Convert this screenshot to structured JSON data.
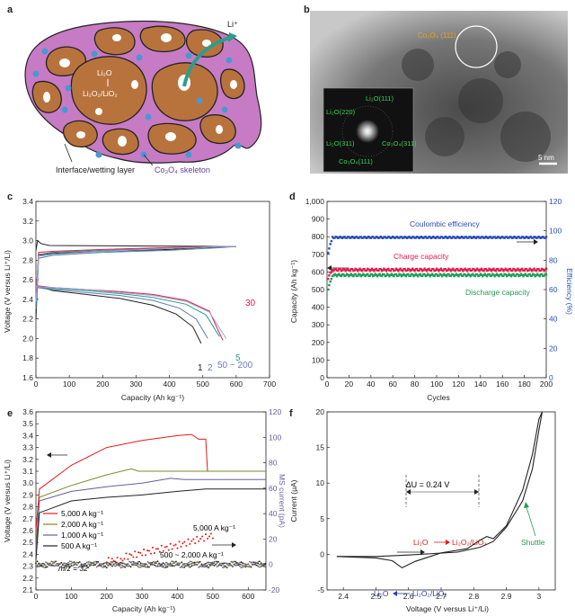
{
  "panel_labels": {
    "a": "a",
    "b": "b",
    "c": "c",
    "d": "d",
    "e": "e",
    "f": "f"
  },
  "panel_a": {
    "li_plus": "Li⁺",
    "li2o": "Li₂O",
    "li2o2": "Li₂O₂/LiO₂",
    "interface": "Interface/wetting layer",
    "skeleton": "Co₃O₄ skeleton",
    "colors": {
      "skeleton": "#c77bc4",
      "grain": "#b8733d",
      "pore": "#ffffff",
      "ball": "#4a97d4"
    }
  },
  "panel_b": {
    "co3o4_111": "Co₃O₄ (111)",
    "saed": [
      "Li₂O(111)",
      "Li₂O(220)",
      "Li₂O(311)",
      "Co₃O₄(311)",
      "Co₃O₄(111)"
    ],
    "scale": "5 nm"
  },
  "chart_data": [
    {
      "panel": "c",
      "type": "line",
      "xlabel": "Capacity (Ah kg⁻¹)",
      "ylabel": "Voltage (V versus Li⁺/Li)",
      "xlim": [
        0,
        700
      ],
      "ylim": [
        1.6,
        3.4
      ],
      "xticks": [
        0,
        100,
        200,
        300,
        400,
        500,
        600,
        700
      ],
      "yticks": [
        1.6,
        1.8,
        2.0,
        2.2,
        2.4,
        2.6,
        2.8,
        3.0,
        3.2,
        3.4
      ],
      "annotations": {
        "c30": "30",
        "c1": "1",
        "c2": "2",
        "c5": "5",
        "c50": "50 ~ 200"
      },
      "series": [
        {
          "color": "#222222",
          "discharge": [
            [
              0,
              2.52
            ],
            [
              10,
              2.53
            ],
            [
              50,
              2.49
            ],
            [
              150,
              2.45
            ],
            [
              250,
              2.41
            ],
            [
              350,
              2.34
            ],
            [
              420,
              2.25
            ],
            [
              470,
              2.12
            ],
            [
              495,
              1.95
            ]
          ],
          "charge": [
            [
              0,
              2.2
            ],
            [
              8,
              2.85
            ],
            [
              50,
              2.87
            ],
            [
              200,
              2.89
            ],
            [
              400,
              2.91
            ],
            [
              500,
              2.93
            ],
            [
              600,
              2.94
            ]
          ],
          "spike": true
        },
        {
          "color": "#5a7fa8",
          "discharge": [
            [
              0,
              2.52
            ],
            [
              50,
              2.5
            ],
            [
              150,
              2.47
            ],
            [
              250,
              2.44
            ],
            [
              350,
              2.39
            ],
            [
              430,
              2.31
            ],
            [
              480,
              2.2
            ],
            [
              515,
              2.0
            ]
          ],
          "charge": [
            [
              0,
              2.3
            ],
            [
              8,
              2.82
            ],
            [
              50,
              2.85
            ],
            [
              200,
              2.88
            ],
            [
              400,
              2.9
            ],
            [
              560,
              2.93
            ],
            [
              600,
              2.94
            ]
          ]
        },
        {
          "color": "#2a9d8f",
          "discharge": [
            [
              0,
              2.53
            ],
            [
              50,
              2.51
            ],
            [
              150,
              2.49
            ],
            [
              250,
              2.46
            ],
            [
              350,
              2.42
            ],
            [
              450,
              2.35
            ],
            [
              510,
              2.24
            ],
            [
              550,
              2.02
            ]
          ],
          "charge": [
            [
              0,
              2.35
            ],
            [
              8,
              2.86
            ],
            [
              50,
              2.88
            ],
            [
              200,
              2.9
            ],
            [
              400,
              2.92
            ],
            [
              540,
              2.94
            ],
            [
              600,
              2.94
            ]
          ]
        },
        {
          "color": "#e31a4a",
          "discharge": [
            [
              0,
              2.54
            ],
            [
              50,
              2.52
            ],
            [
              150,
              2.5
            ],
            [
              250,
              2.48
            ],
            [
              350,
              2.45
            ],
            [
              450,
              2.39
            ],
            [
              520,
              2.28
            ],
            [
              560,
              1.98
            ]
          ],
          "charge": [
            [
              0,
              2.4
            ],
            [
              8,
              2.88
            ],
            [
              50,
              2.89
            ],
            [
              200,
              2.91
            ],
            [
              400,
              2.93
            ],
            [
              550,
              2.94
            ],
            [
              600,
              2.94
            ]
          ]
        },
        {
          "color": "#9aa8d8",
          "discharge": [
            [
              0,
              2.53
            ],
            [
              50,
              2.52
            ],
            [
              150,
              2.5
            ],
            [
              250,
              2.47
            ],
            [
              350,
              2.44
            ],
            [
              450,
              2.38
            ],
            [
              520,
              2.27
            ],
            [
              570,
              2.0
            ]
          ],
          "charge": [
            [
              0,
              2.38
            ],
            [
              8,
              2.84
            ],
            [
              50,
              2.86
            ],
            [
              200,
              2.89
            ],
            [
              400,
              2.92
            ],
            [
              550,
              2.94
            ],
            [
              600,
              2.94
            ]
          ]
        }
      ]
    },
    {
      "panel": "d",
      "type": "scatter",
      "xlabel": "Cycles",
      "ylabel": "Capacity (Ah kg⁻¹)",
      "y2label": "Efficiency (%)",
      "xlim": [
        0,
        200
      ],
      "ylim": [
        0,
        1000
      ],
      "y2lim": [
        0,
        120
      ],
      "xticks": [
        0,
        20,
        40,
        60,
        80,
        100,
        120,
        140,
        160,
        180,
        200
      ],
      "yticks": [
        0,
        100,
        200,
        300,
        400,
        500,
        600,
        700,
        800,
        900,
        1000
      ],
      "y2ticks": [
        0,
        20,
        40,
        60,
        80,
        100,
        120
      ],
      "series": [
        {
          "name": "Coulombic efficiency",
          "color": "#2a4fb8",
          "axis": "y2",
          "start": [
            85,
            88,
            91,
            93
          ],
          "value": 95.5
        },
        {
          "name": "Charge capacity",
          "color": "#e31a4a",
          "axis": "y",
          "start": [
            560,
            580,
            595,
            600
          ],
          "value": 612
        },
        {
          "name": "Discharge capacity",
          "color": "#1f9d55",
          "axis": "y",
          "start": [
            500,
            525,
            545,
            560
          ],
          "value": 582
        }
      ]
    },
    {
      "panel": "e",
      "type": "line",
      "xlabel": "Capacity (Ah kg⁻¹)",
      "ylabel": "Voltage (V versus Li⁺/Li)",
      "y2label": "MS current (pA)",
      "xlim": [
        0,
        650
      ],
      "ylim": [
        2.1,
        3.6
      ],
      "y2lim": [
        -20,
        120
      ],
      "xticks": [
        0,
        100,
        200,
        300,
        400,
        500,
        600
      ],
      "yticks": [
        2.1,
        2.2,
        2.3,
        2.4,
        2.5,
        2.6,
        2.7,
        2.8,
        2.9,
        3.0,
        3.1,
        3.2,
        3.3,
        3.4,
        3.5,
        3.6
      ],
      "y2ticks": [
        -20,
        0,
        20,
        40,
        60,
        80,
        100,
        120
      ],
      "legend": [
        "5,000 A kg⁻¹",
        "2,000 A kg⁻¹",
        "1,000 A kg⁻¹",
        "500 A kg⁻¹"
      ],
      "annotations": {
        "high": "5,000 A kg⁻¹",
        "low": "500 ~ 2,000 A kg⁻¹",
        "mz": "m/z = 32"
      },
      "series": [
        {
          "name": "5,000 A kg⁻¹",
          "color": "#e31a1a",
          "v": [
            [
              0,
              2.6
            ],
            [
              10,
              2.95
            ],
            [
              100,
              3.15
            ],
            [
              200,
              3.3
            ],
            [
              300,
              3.36
            ],
            [
              400,
              3.4
            ],
            [
              440,
              3.41
            ],
            [
              460,
              3.37
            ],
            [
              480,
              3.37
            ],
            [
              485,
              3.1
            ],
            [
              650,
              3.1
            ]
          ]
        },
        {
          "name": "2,000 A kg⁻¹",
          "color": "#7a8a2a",
          "v": [
            [
              0,
              2.45
            ],
            [
              10,
              2.88
            ],
            [
              100,
              2.98
            ],
            [
              200,
              3.07
            ],
            [
              270,
              3.12
            ],
            [
              290,
              3.1
            ],
            [
              650,
              3.1
            ]
          ]
        },
        {
          "name": "1,000 A kg⁻¹",
          "color": "#6a5aa0",
          "v": [
            [
              0,
              2.4
            ],
            [
              10,
              2.85
            ],
            [
              100,
              2.93
            ],
            [
              200,
              2.97
            ],
            [
              300,
              3.0
            ],
            [
              380,
              3.04
            ],
            [
              420,
              3.03
            ],
            [
              650,
              3.03
            ]
          ]
        },
        {
          "name": "500 A kg⁻¹",
          "color": "#222222",
          "v": [
            [
              0,
              2.35
            ],
            [
              10,
              2.75
            ],
            [
              100,
              2.85
            ],
            [
              200,
              2.88
            ],
            [
              300,
              2.9
            ],
            [
              400,
              2.93
            ],
            [
              480,
              2.95
            ],
            [
              650,
              2.95
            ]
          ]
        }
      ]
    },
    {
      "panel": "f",
      "type": "line",
      "xlabel": "Voltage (V versus Li⁺/Li)",
      "ylabel": "Current (μA)",
      "xlim": [
        2.35,
        3.05
      ],
      "ylim": [
        -5,
        20
      ],
      "xticks": [
        2.4,
        2.5,
        2.6,
        2.7,
        2.8,
        2.9,
        3.0
      ],
      "yticks": [
        -5,
        0,
        5,
        10,
        15,
        20
      ],
      "annotations": {
        "du": "ΔU = 0.24 V",
        "ox_a": "Li₂O",
        "ox_b": "Li₂O₂/LiO₂",
        "red_a": "Li₂O",
        "red_b": "Li₂O₂/LiO₂",
        "shuttle": "Shuttle"
      },
      "fwd": [
        [
          2.38,
          -0.3
        ],
        [
          2.5,
          -0.5
        ],
        [
          2.55,
          -0.9
        ],
        [
          2.58,
          -1.9
        ],
        [
          2.62,
          -1.0
        ],
        [
          2.7,
          0.2
        ],
        [
          2.78,
          0.8
        ],
        [
          2.82,
          2.0
        ],
        [
          2.84,
          2.5
        ],
        [
          2.86,
          2.2
        ],
        [
          2.9,
          4.0
        ],
        [
          2.95,
          9.0
        ],
        [
          2.98,
          14.0
        ],
        [
          3.0,
          19.0
        ],
        [
          3.01,
          20.0
        ]
      ],
      "rev": [
        [
          3.01,
          20.0
        ],
        [
          3.0,
          17.5
        ],
        [
          2.98,
          12.0
        ],
        [
          2.95,
          7.5
        ],
        [
          2.9,
          3.8
        ],
        [
          2.86,
          1.8
        ],
        [
          2.82,
          1.0
        ],
        [
          2.75,
          0.3
        ],
        [
          2.6,
          -0.1
        ],
        [
          2.5,
          -0.3
        ],
        [
          2.38,
          -0.3
        ]
      ]
    }
  ]
}
